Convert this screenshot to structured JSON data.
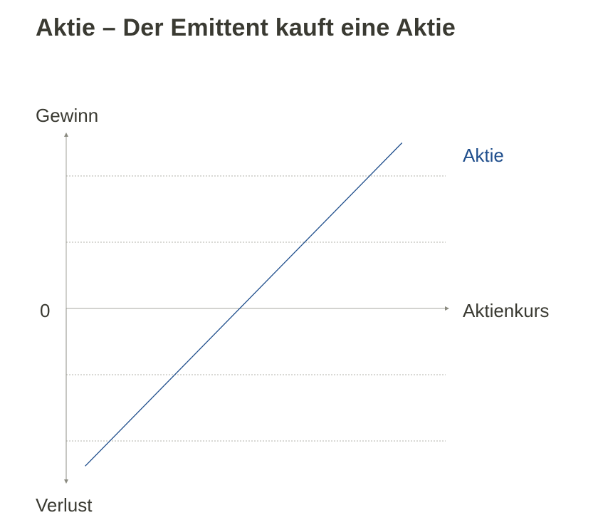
{
  "title": "Aktie – Der Emittent kauft eine Aktie",
  "colors": {
    "text": "#3a3a32",
    "axis": "#8a8a80",
    "grid": "#9a9a90",
    "series": "#1f4e8c"
  },
  "chart_data": {
    "type": "line",
    "title": "Aktie – Der Emittent kauft eine Aktie",
    "xlabel": "Aktienkurs",
    "ylabel_top": "Gewinn",
    "ylabel_bottom": "Verlust",
    "zero_label": "0",
    "ylim": [
      -2.5,
      2.65
    ],
    "y_gridlines": [
      -2,
      -1,
      1,
      2
    ],
    "grid": "dashed-horizontal",
    "series": [
      {
        "name": "Aktie",
        "color": "#1f4e8c",
        "x": [
          0.1,
          1.77
        ],
        "y": [
          -2.38,
          2.5
        ]
      }
    ],
    "xlim": [
      0,
      2
    ]
  }
}
